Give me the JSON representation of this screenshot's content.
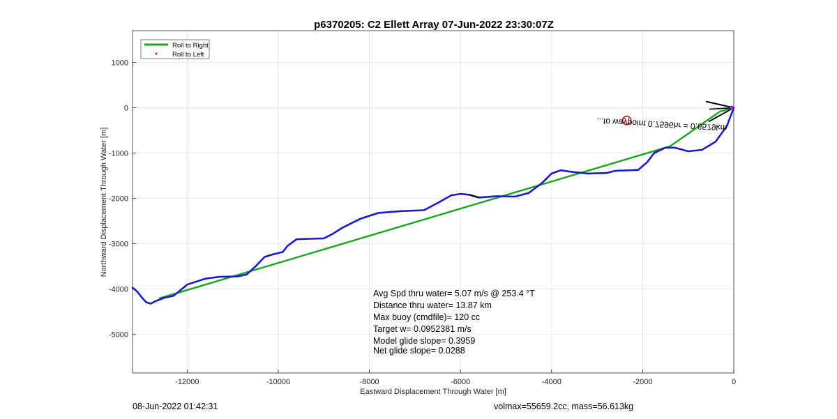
{
  "chart_data": {
    "type": "line",
    "title": "p6370205: C2 Ellett Array 07-Jun-2022 23:30:07Z",
    "xlabel": "Eastward Displacement Through Water [m]",
    "ylabel": "Northward Displacement Through Water [m]",
    "xlim": [
      -13200,
      0
    ],
    "ylim": [
      -5850,
      1700
    ],
    "xticks": [
      -12000,
      -10000,
      -8000,
      -6000,
      -4000,
      -2000,
      0
    ],
    "yticks": [
      1000,
      0,
      -1000,
      -2000,
      -3000,
      -4000,
      -5000
    ],
    "xtick_labels": [
      "-12000",
      "-10000",
      "-8000",
      "-6000",
      "-4000",
      "-2000",
      "0"
    ],
    "ytick_labels": [
      "1000",
      "0",
      "-1000",
      "-2000",
      "-3000",
      "-4000",
      "-5000"
    ],
    "grid": true,
    "legend_position": "top-left",
    "legend": [
      {
        "label": "Roll to Right",
        "color": "#17a51b",
        "style": "line"
      },
      {
        "label": "Roll to Left",
        "color": "#e0191c",
        "style": "dot"
      }
    ],
    "series": [
      {
        "name": "Roll to Right",
        "color": "#17a51b",
        "points": [
          [
            0,
            0
          ],
          [
            -300,
            -80
          ],
          [
            -1400,
            -850
          ],
          [
            -12600,
            -4200
          ]
        ]
      },
      {
        "name": "",
        "color": "#1a1acb",
        "points": [
          [
            0,
            0
          ],
          [
            -150,
            -400
          ],
          [
            -400,
            -750
          ],
          [
            -700,
            -930
          ],
          [
            -1000,
            -960
          ],
          [
            -1300,
            -880
          ],
          [
            -1500,
            -880
          ],
          [
            -1750,
            -1000
          ],
          [
            -1900,
            -1200
          ],
          [
            -2100,
            -1370
          ],
          [
            -2300,
            -1380
          ],
          [
            -2600,
            -1390
          ],
          [
            -2800,
            -1440
          ],
          [
            -3200,
            -1450
          ],
          [
            -3500,
            -1420
          ],
          [
            -3800,
            -1380
          ],
          [
            -4000,
            -1450
          ],
          [
            -4200,
            -1650
          ],
          [
            -4500,
            -1880
          ],
          [
            -4800,
            -1960
          ],
          [
            -5200,
            -1950
          ],
          [
            -5600,
            -1980
          ],
          [
            -5800,
            -1920
          ],
          [
            -6000,
            -1900
          ],
          [
            -6200,
            -1930
          ],
          [
            -6500,
            -2100
          ],
          [
            -6800,
            -2260
          ],
          [
            -7300,
            -2280
          ],
          [
            -7800,
            -2320
          ],
          [
            -8200,
            -2450
          ],
          [
            -8600,
            -2650
          ],
          [
            -8800,
            -2780
          ],
          [
            -9000,
            -2880
          ],
          [
            -9300,
            -2890
          ],
          [
            -9600,
            -2900
          ],
          [
            -9800,
            -3050
          ],
          [
            -9900,
            -3180
          ],
          [
            -10100,
            -3230
          ],
          [
            -10300,
            -3290
          ],
          [
            -10500,
            -3500
          ],
          [
            -10700,
            -3680
          ],
          [
            -10900,
            -3720
          ],
          [
            -11300,
            -3730
          ],
          [
            -11600,
            -3770
          ],
          [
            -12000,
            -3900
          ],
          [
            -12300,
            -4150
          ],
          [
            -12500,
            -4190
          ],
          [
            -12700,
            -4270
          ],
          [
            -12800,
            -4320
          ],
          [
            -12900,
            -4290
          ],
          [
            -13000,
            -4180
          ],
          [
            -13100,
            -4050
          ],
          [
            -13200,
            -3970
          ]
        ]
      },
      {
        "name": "",
        "color": "#000000",
        "points": [
          [
            -5800,
            -1920
          ],
          [
            -5700,
            -1960
          ],
          [
            -5600,
            -1980
          ]
        ]
      }
    ],
    "annotations": {
      "arrow_tip": [
        0,
        0
      ],
      "target_marker": [
        -2350,
        -280
      ],
      "rotated_label": "...to waypoint 0.7596hr = 0.6579km"
    },
    "stats": [
      "Avg Spd thru water=  5.07 m/s @ 253.4 °T",
      "Distance thru water= 13.87 km",
      "Max buoy (cmdfile)= 120 cc",
      "Target w= 0.0952381 m/s",
      "Model glide slope= 0.3959",
      "Net glide slope= 0.0288"
    ]
  },
  "footer": {
    "left": "08-Jun-2022 01:42:31",
    "right": "volmax=55659.2cc, mass=56.613kg"
  }
}
